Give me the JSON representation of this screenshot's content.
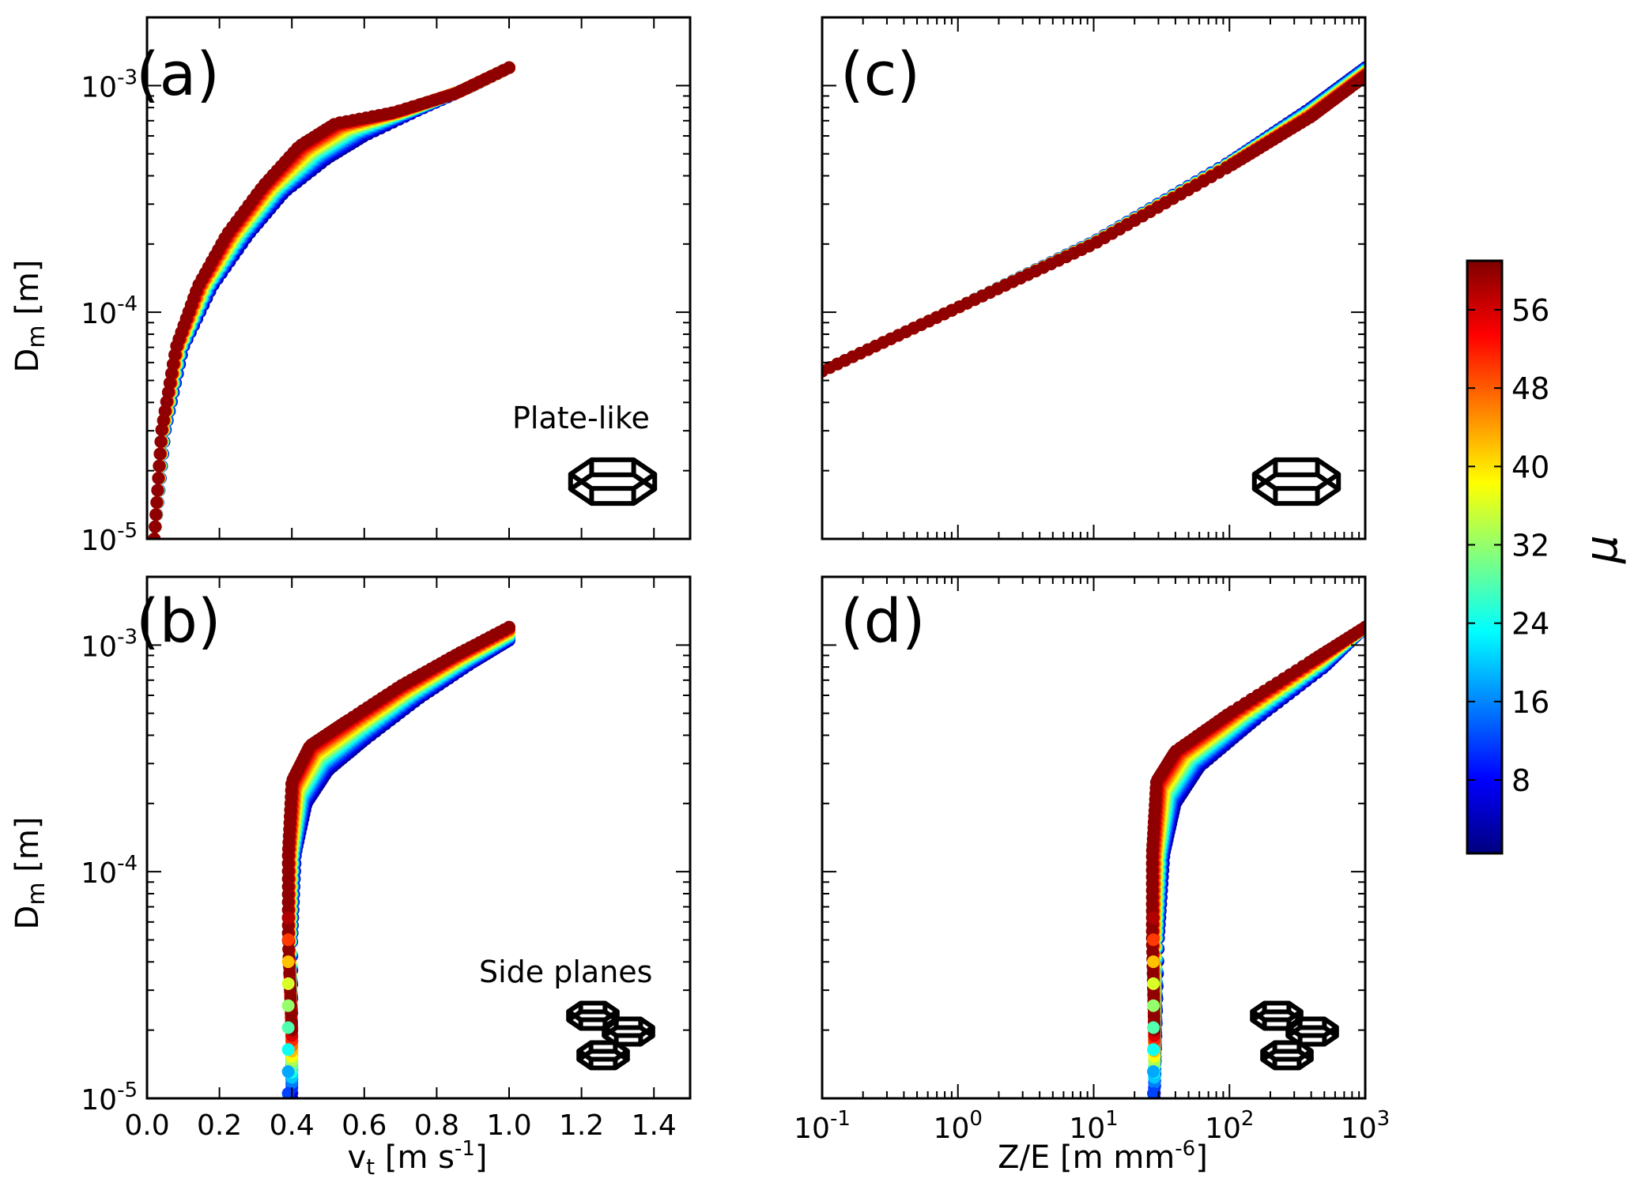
{
  "figure": {
    "panels": [
      {
        "id": "a",
        "label": "(a)",
        "annotation": "Plate-like",
        "icon": "hexagonal-plate-icon"
      },
      {
        "id": "b",
        "label": "(b)",
        "annotation": "Side planes",
        "icon": "side-planes-aggregate-icon"
      },
      {
        "id": "c",
        "label": "(c)",
        "annotation": "",
        "icon": "hexagonal-plate-icon"
      },
      {
        "id": "d",
        "label": "(d)",
        "annotation": "",
        "icon": "side-planes-aggregate-icon"
      }
    ],
    "ylabel_main": "D",
    "ylabel_sub": "m",
    "ylabel_unit": "[m]",
    "y_ticks": [
      {
        "base": "10",
        "exp": "-3"
      },
      {
        "base": "10",
        "exp": "-4"
      },
      {
        "base": "10",
        "exp": "-5"
      }
    ],
    "x_ticks_linear": [
      "0.0",
      "0.2",
      "0.4",
      "0.6",
      "0.8",
      "1.0",
      "1.2",
      "1.4"
    ],
    "x_ticks_log": [
      {
        "base": "10",
        "exp": "-1"
      },
      {
        "base": "10",
        "exp": "0"
      },
      {
        "base": "10",
        "exp": "1"
      },
      {
        "base": "10",
        "exp": "2"
      },
      {
        "base": "10",
        "exp": "3"
      }
    ],
    "xlabel_left_main": "v",
    "xlabel_left_sub": "t",
    "xlabel_left_unit": " [m s",
    "xlabel_left_exp": "-1",
    "xlabel_left_close": "]",
    "xlabel_right_main": "Z/E [m mm",
    "xlabel_right_exp": "-6",
    "xlabel_right_close": "]",
    "colorbar": {
      "label": "μ",
      "ticks": [
        "56",
        "48",
        "40",
        "32",
        "24",
        "16",
        "8"
      ],
      "colormap": "jet",
      "colors": [
        "#00007f",
        "#0000ff",
        "#0080ff",
        "#00ffff",
        "#80ff80",
        "#ffff00",
        "#ff8000",
        "#ff0000",
        "#7f0000"
      ]
    }
  },
  "chart_data": [
    {
      "panel": "a",
      "type": "scatter",
      "xlabel": "vt [m s-1]",
      "ylabel": "Dm [m]",
      "xlim": [
        0.0,
        1.5
      ],
      "ylim": [
        1e-05,
        0.002
      ],
      "yscale": "log",
      "series": [
        {
          "color_value": 2,
          "points": [
            [
              0.02,
              1e-05
            ],
            [
              0.05,
              3e-05
            ],
            [
              0.1,
              7e-05
            ],
            [
              0.18,
              0.00013
            ],
            [
              0.28,
              0.00022
            ],
            [
              0.38,
              0.00034
            ],
            [
              0.5,
              0.00048
            ],
            [
              0.6,
              0.0006
            ],
            [
              0.75,
              0.00078
            ],
            [
              0.9,
              0.001
            ],
            [
              1.0,
              0.0012
            ]
          ]
        },
        {
          "color_value": 60,
          "points": [
            [
              0.02,
              1e-05
            ],
            [
              0.04,
              3e-05
            ],
            [
              0.08,
              7e-05
            ],
            [
              0.14,
              0.00013
            ],
            [
              0.22,
              0.00022
            ],
            [
              0.32,
              0.00036
            ],
            [
              0.42,
              0.00054
            ],
            [
              0.52,
              0.00068
            ],
            [
              0.68,
              0.00076
            ],
            [
              0.85,
              0.00092
            ],
            [
              1.0,
              0.0012
            ]
          ]
        }
      ]
    },
    {
      "panel": "b",
      "type": "scatter",
      "xlabel": "vt [m s-1]",
      "ylabel": "Dm [m]",
      "xlim": [
        0.0,
        1.5
      ],
      "ylim": [
        1e-05,
        0.002
      ],
      "yscale": "log",
      "series": [
        {
          "color_value": 2,
          "points": [
            [
              0.4,
              1e-05
            ],
            [
              0.4,
              5e-05
            ],
            [
              0.41,
              0.00012
            ],
            [
              0.44,
              0.0002
            ],
            [
              0.5,
              0.00028
            ],
            [
              0.6,
              0.00038
            ],
            [
              0.75,
              0.00058
            ],
            [
              0.9,
              0.00084
            ],
            [
              1.0,
              0.00105
            ]
          ]
        },
        {
          "color_value": 60,
          "points": [
            [
              0.4,
              2e-05
            ],
            [
              0.39,
              5e-05
            ],
            [
              0.39,
              0.00012
            ],
            [
              0.4,
              0.00025
            ],
            [
              0.45,
              0.00036
            ],
            [
              0.55,
              0.00046
            ],
            [
              0.7,
              0.00066
            ],
            [
              0.85,
              0.0009
            ],
            [
              1.0,
              0.0012
            ]
          ]
        }
      ]
    },
    {
      "panel": "c",
      "type": "scatter",
      "xlabel": "Z/E [m mm-6]",
      "ylabel": "Dm [m]",
      "xlim": [
        0.1,
        1000
      ],
      "ylim": [
        1e-05,
        0.002
      ],
      "xscale": "log",
      "yscale": "log",
      "series": [
        {
          "color_value": 2,
          "points": [
            [
              0.1,
              5.5e-05
            ],
            [
              1,
              0.000105
            ],
            [
              10,
              0.000205
            ],
            [
              100,
              0.00046
            ],
            [
              400,
              0.0008
            ],
            [
              1000,
              0.0012
            ]
          ]
        },
        {
          "color_value": 60,
          "points": [
            [
              0.1,
              5.5e-05
            ],
            [
              1,
              0.000105
            ],
            [
              10,
              0.0002
            ],
            [
              100,
              0.00044
            ],
            [
              400,
              0.00073
            ],
            [
              1000,
              0.0011
            ]
          ]
        }
      ]
    },
    {
      "panel": "d",
      "type": "scatter",
      "xlabel": "Z/E [m mm-6]",
      "ylabel": "Dm [m]",
      "xlim": [
        0.1,
        1000
      ],
      "ylim": [
        1e-05,
        0.002
      ],
      "xscale": "log",
      "yscale": "log",
      "series": [
        {
          "color_value": 2,
          "points": [
            [
              28,
              1e-05
            ],
            [
              30,
              5e-05
            ],
            [
              33,
              0.00012
            ],
            [
              40,
              0.0002
            ],
            [
              60,
              0.00029
            ],
            [
              150,
              0.00046
            ],
            [
              500,
              0.0008
            ],
            [
              1000,
              0.0012
            ]
          ]
        },
        {
          "color_value": 60,
          "points": [
            [
              28,
              2e-05
            ],
            [
              27,
              5e-05
            ],
            [
              27,
              0.00012
            ],
            [
              29,
              0.00025
            ],
            [
              40,
              0.00034
            ],
            [
              100,
              0.0005
            ],
            [
              400,
              0.00085
            ],
            [
              1000,
              0.0012
            ]
          ]
        }
      ]
    }
  ]
}
